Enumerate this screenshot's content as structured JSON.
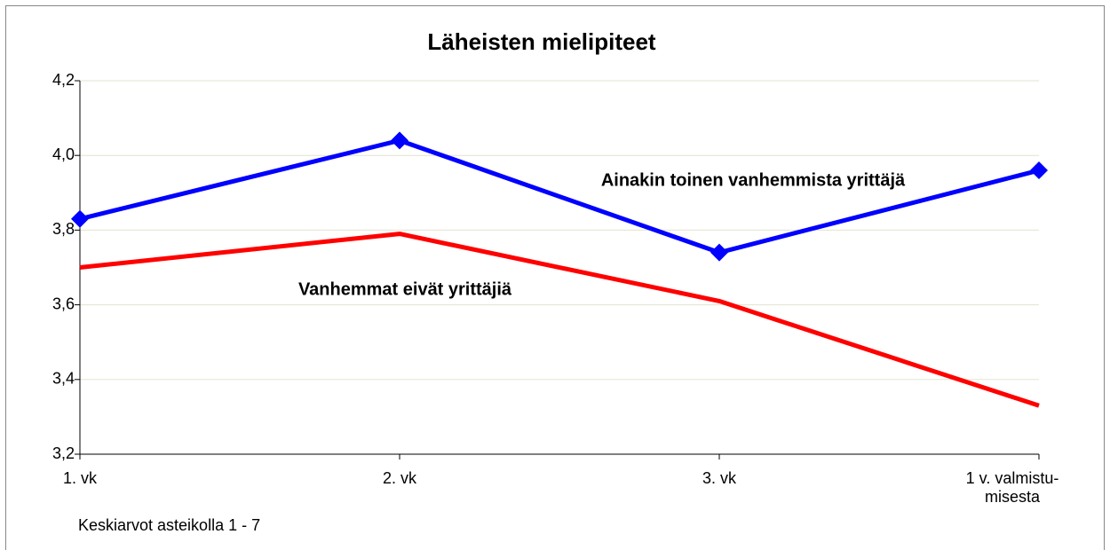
{
  "chart_data": {
    "type": "line",
    "title": "Läheisten mielipiteet",
    "categories": [
      "1. vk",
      "2. vk",
      "3. vk",
      "1 v. valmistu-\nmisesta"
    ],
    "series": [
      {
        "name": "Ainakin toinen vanhemmista yrittäjä",
        "color": "#0000ff",
        "marker": "diamond",
        "values": [
          3.83,
          4.04,
          3.74,
          3.96
        ]
      },
      {
        "name": "Vanhemmat eivät yrittäjiä",
        "color": "#ff0000",
        "marker": "none",
        "values": [
          3.7,
          3.79,
          3.61,
          3.33
        ]
      }
    ],
    "ylim": [
      3.2,
      4.2
    ],
    "yticks": [
      {
        "value": 3.2,
        "label": "3,2"
      },
      {
        "value": 3.4,
        "label": "3,4"
      },
      {
        "value": 3.6,
        "label": "3,6"
      },
      {
        "value": 3.8,
        "label": "3,8"
      },
      {
        "value": 4.0,
        "label": "4,0"
      },
      {
        "value": 4.2,
        "label": "4,2"
      }
    ],
    "grid": true,
    "note": "Keskiarvot asteikolla 1 - 7"
  }
}
